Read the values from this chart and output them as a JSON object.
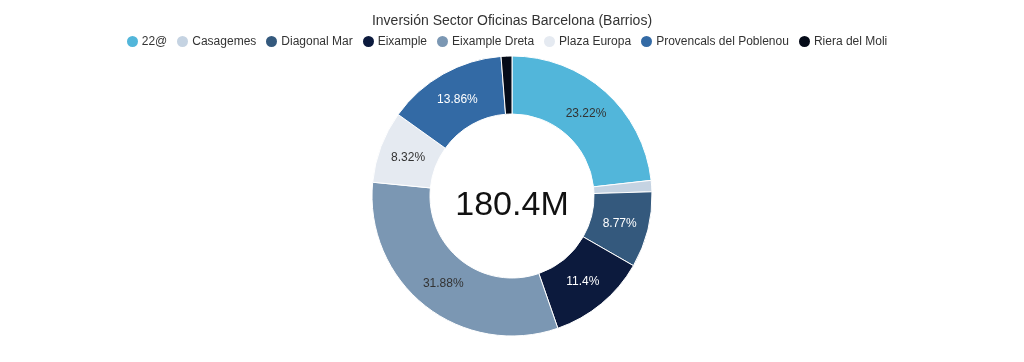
{
  "chart_data": {
    "type": "donut",
    "title": "Inversión Sector Oficinas Barcelona (Barrios)",
    "categories": [
      "22@",
      "Casagemes",
      "Diagonal Mar",
      "Eixample",
      "Eixample Dreta",
      "Plaza Europa",
      "Provencals del Poblenou",
      "Riera del Moli"
    ],
    "values": [
      23.22,
      1.3,
      8.77,
      11.4,
      31.88,
      8.32,
      13.86,
      1.25
    ],
    "value_labels": [
      "23.22%",
      null,
      "8.77%",
      "11.4%",
      "31.88%",
      "8.32%",
      "13.86%",
      null
    ],
    "colors": [
      "#52b6da",
      "#c5d3e2",
      "#34597d",
      "#0c1a3d",
      "#7b97b3",
      "#e5eaf1",
      "#336aa5",
      "#050b18"
    ],
    "annotations": [
      "180.4M"
    ],
    "legend": "top"
  }
}
